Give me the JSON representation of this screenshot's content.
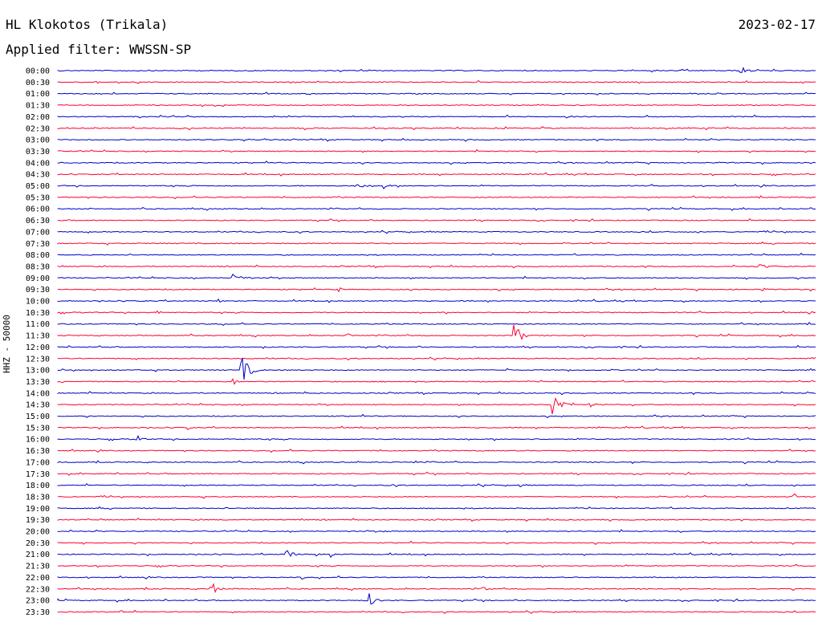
{
  "header": {
    "station": "HL Klokotos (Trikala)",
    "date": "2023-02-17",
    "filter": "Applied filter: WWSSN-SP"
  },
  "axis_label": "HHZ - 50000",
  "colors": {
    "even": "#0000cc",
    "odd": "#ff0033"
  },
  "rows": [
    {
      "time": "00:00",
      "events": [
        [
          0.9,
          0.02,
          7
        ]
      ]
    },
    {
      "time": "00:30",
      "events": [
        [
          0.05,
          0.01,
          4
        ]
      ]
    },
    {
      "time": "01:00",
      "events": []
    },
    {
      "time": "01:30",
      "events": []
    },
    {
      "time": "02:00",
      "events": []
    },
    {
      "time": "02:30",
      "events": []
    },
    {
      "time": "03:00",
      "events": []
    },
    {
      "time": "03:30",
      "events": []
    },
    {
      "time": "04:00",
      "events": []
    },
    {
      "time": "04:30",
      "events": []
    },
    {
      "time": "05:00",
      "events": [
        [
          0.39,
          0.04,
          4
        ],
        [
          0.43,
          0.02,
          4
        ]
      ]
    },
    {
      "time": "05:30",
      "events": []
    },
    {
      "time": "06:00",
      "events": []
    },
    {
      "time": "06:30",
      "events": []
    },
    {
      "time": "07:00",
      "events": []
    },
    {
      "time": "07:30",
      "events": []
    },
    {
      "time": "08:00",
      "events": []
    },
    {
      "time": "08:30",
      "events": [
        [
          0.92,
          0.05,
          4
        ]
      ]
    },
    {
      "time": "09:00",
      "events": [
        [
          0.23,
          0.04,
          6
        ]
      ]
    },
    {
      "time": "09:30",
      "events": [
        [
          0.37,
          0.01,
          5
        ],
        [
          0.93,
          0.01,
          5
        ]
      ]
    },
    {
      "time": "10:00",
      "events": [
        [
          0.21,
          0.01,
          8
        ]
      ]
    },
    {
      "time": "10:30",
      "events": [
        [
          0.13,
          0.01,
          6
        ]
      ]
    },
    {
      "time": "11:00",
      "events": []
    },
    {
      "time": "11:30",
      "events": [
        [
          0.6,
          0.02,
          30
        ],
        [
          0.38,
          0.02,
          4
        ]
      ]
    },
    {
      "time": "12:00",
      "events": [
        [
          0.27,
          0.01,
          3
        ]
      ]
    },
    {
      "time": "12:30",
      "events": []
    },
    {
      "time": "13:00",
      "events": [
        [
          0.24,
          0.03,
          22
        ],
        [
          0.59,
          0.01,
          6
        ]
      ]
    },
    {
      "time": "13:30",
      "events": [
        [
          0.23,
          0.02,
          5
        ]
      ]
    },
    {
      "time": "14:00",
      "events": []
    },
    {
      "time": "14:30",
      "events": [
        [
          0.65,
          0.03,
          22
        ],
        [
          0.7,
          0.02,
          5
        ]
      ]
    },
    {
      "time": "15:00",
      "events": [
        [
          0.02,
          0.01,
          3
        ]
      ]
    },
    {
      "time": "15:30",
      "events": [
        [
          0.17,
          0.01,
          4
        ]
      ]
    },
    {
      "time": "16:00",
      "events": [
        [
          0.1,
          0.02,
          10
        ]
      ]
    },
    {
      "time": "16:30",
      "events": []
    },
    {
      "time": "17:00",
      "events": [
        [
          0.47,
          0.01,
          3
        ]
      ]
    },
    {
      "time": "17:30",
      "events": [
        [
          0.2,
          0.01,
          3
        ]
      ]
    },
    {
      "time": "18:00",
      "events": [
        [
          0.44,
          0.01,
          4
        ],
        [
          0.61,
          0.01,
          3
        ]
      ]
    },
    {
      "time": "18:30",
      "events": [
        [
          0.97,
          0.01,
          10
        ]
      ]
    },
    {
      "time": "19:00",
      "events": []
    },
    {
      "time": "19:30",
      "events": [
        [
          0.32,
          0.01,
          3
        ]
      ]
    },
    {
      "time": "20:00",
      "events": [
        [
          0.43,
          0.01,
          3
        ]
      ]
    },
    {
      "time": "20:30",
      "events": []
    },
    {
      "time": "21:00",
      "events": [
        [
          0.3,
          0.02,
          12
        ],
        [
          0.34,
          0.01,
          5
        ],
        [
          0.36,
          0.01,
          5
        ]
      ]
    },
    {
      "time": "21:30",
      "events": []
    },
    {
      "time": "22:00",
      "events": [
        [
          0.32,
          0.01,
          6
        ]
      ]
    },
    {
      "time": "22:30",
      "events": [
        [
          0.2,
          0.02,
          14
        ],
        [
          0.56,
          0.02,
          4
        ]
      ]
    },
    {
      "time": "23:00",
      "events": [
        [
          0.41,
          0.02,
          12
        ]
      ]
    },
    {
      "time": "23:30",
      "events": [
        [
          0.08,
          0.01,
          8
        ]
      ]
    }
  ]
}
